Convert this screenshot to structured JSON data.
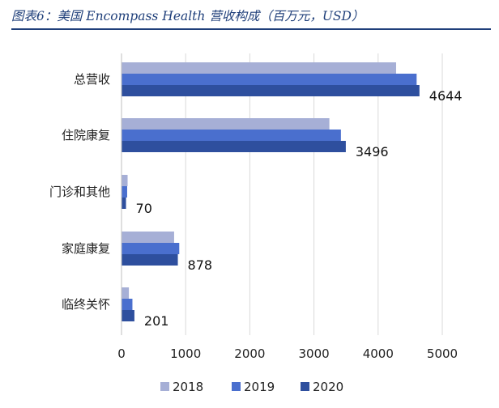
{
  "figure": {
    "title": "图表6：美国 Encompass Health 营收构成（百万元，USD）"
  },
  "chart_data": {
    "type": "bar",
    "orientation": "horizontal",
    "categories": [
      "总营收",
      "住院康复",
      "门诊和其他",
      "家庭康复",
      "临终关怀"
    ],
    "series": [
      {
        "name": "2018",
        "color": "#a6afd6",
        "values": [
          4280,
          3240,
          95,
          820,
          115
        ]
      },
      {
        "name": "2019",
        "color": "#4a6fce",
        "values": [
          4600,
          3420,
          88,
          900,
          170
        ]
      },
      {
        "name": "2020",
        "color": "#2e4f9e",
        "values": [
          4644,
          3496,
          70,
          878,
          201
        ]
      }
    ],
    "data_labels": {
      "series": "2020",
      "values": [
        "4644",
        "3496",
        "70",
        "878",
        "201"
      ]
    },
    "xlim": [
      0,
      5000
    ],
    "xticks": [
      0,
      1000,
      2000,
      3000,
      4000,
      5000
    ],
    "xtick_labels": [
      "0",
      "1000",
      "2000",
      "3000",
      "4000",
      "5000"
    ],
    "grid": "vertical",
    "legend_position": "bottom"
  }
}
